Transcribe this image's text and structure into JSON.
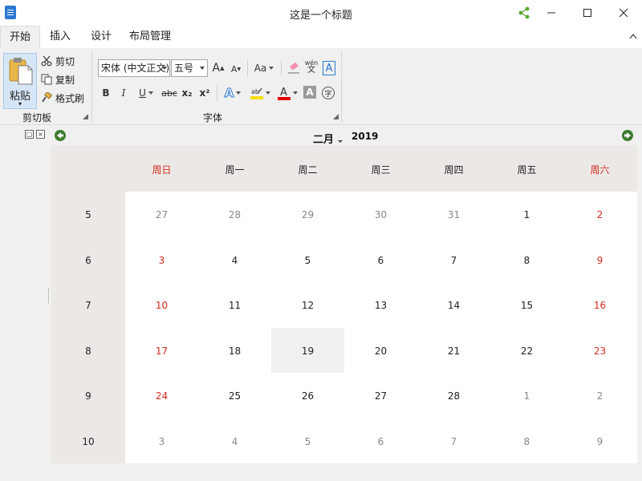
{
  "window": {
    "title": "这是一个标题"
  },
  "tabs": [
    {
      "label": "开始",
      "active": true
    },
    {
      "label": "插入"
    },
    {
      "label": "设计"
    },
    {
      "label": "布局管理"
    }
  ],
  "clipboard": {
    "paste_label": "粘贴",
    "cut_label": "剪切",
    "copy_label": "复制",
    "format_painter_label": "格式刷",
    "group_label": "剪切板"
  },
  "font": {
    "font_name": "宋体 (中文正文)",
    "font_size": "五号",
    "group_label": "字体",
    "change_case_label": "Aa",
    "phonetic_top": "wén",
    "phonetic_bottom": "文",
    "bold": "B",
    "italic": "I",
    "underline": "U",
    "strike": "abc",
    "subscript": "x₂",
    "superscript": "x²",
    "enclose_char": "字"
  },
  "colors": {
    "accent": "#2b78d0",
    "weekend_red": "#d42a1f",
    "nav_green": "#3d7a2f",
    "share_green": "#5aa832"
  },
  "calendar": {
    "month": "二月",
    "year": "2019",
    "weekdays": [
      "周日",
      "周一",
      "周二",
      "周三",
      "周四",
      "周五",
      "周六"
    ],
    "weeks": [
      {
        "num": "5",
        "days": [
          "27",
          "28",
          "29",
          "30",
          "31",
          "1",
          "2"
        ],
        "other": [
          true,
          true,
          true,
          true,
          true,
          false,
          false
        ]
      },
      {
        "num": "6",
        "days": [
          "3",
          "4",
          "5",
          "6",
          "7",
          "8",
          "9"
        ],
        "other": [
          false,
          false,
          false,
          false,
          false,
          false,
          false
        ]
      },
      {
        "num": "7",
        "days": [
          "10",
          "11",
          "12",
          "13",
          "14",
          "15",
          "16"
        ],
        "other": [
          false,
          false,
          false,
          false,
          false,
          false,
          false
        ]
      },
      {
        "num": "8",
        "days": [
          "17",
          "18",
          "19",
          "20",
          "21",
          "22",
          "23"
        ],
        "other": [
          false,
          false,
          false,
          false,
          false,
          false,
          false
        ]
      },
      {
        "num": "9",
        "days": [
          "24",
          "25",
          "26",
          "27",
          "28",
          "1",
          "2"
        ],
        "other": [
          false,
          false,
          false,
          false,
          false,
          true,
          true
        ]
      },
      {
        "num": "10",
        "days": [
          "3",
          "4",
          "5",
          "6",
          "7",
          "8",
          "9"
        ],
        "other": [
          true,
          true,
          true,
          true,
          true,
          true,
          true
        ]
      }
    ],
    "selected": {
      "week": 3,
      "day": 2
    }
  }
}
